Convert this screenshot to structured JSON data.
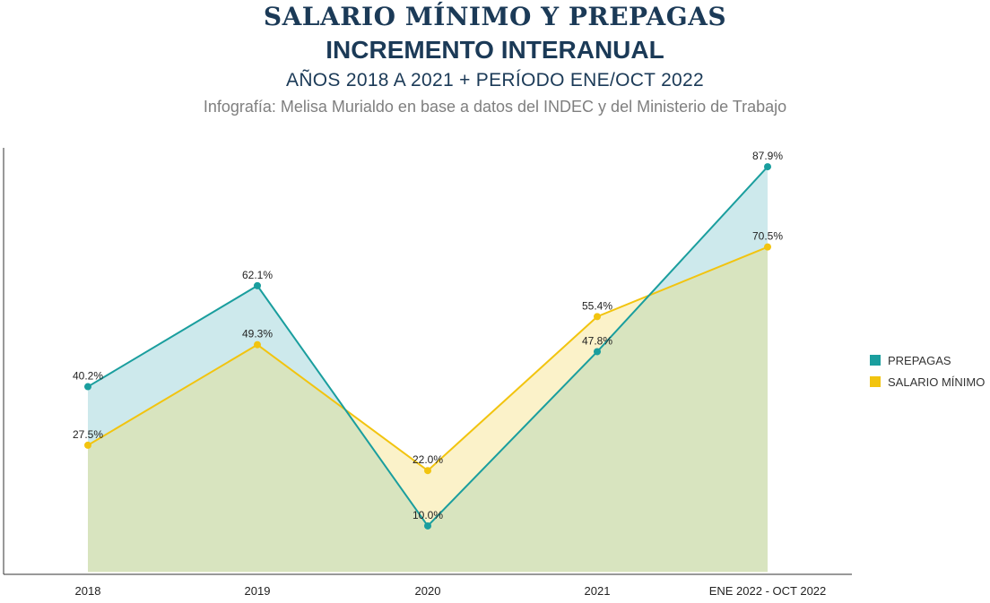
{
  "header": {
    "title": "SALARIO MÍNIMO Y PREPAGAS",
    "subtitle": "INCREMENTO INTERANUAL",
    "period": "AÑOS 2018 A 2021 + PERÍODO ENE/OCT 2022",
    "credit": "Infografía: Melisa Murialdo en base a datos del INDEC y del Ministerio de Trabajo"
  },
  "colors": {
    "title": "#1b3a57",
    "prepagas_line": "#1a9e9e",
    "prepagas_fill": "#cde9ec",
    "salario_line": "#f2c40f",
    "salario_fill": "#fbf2c9",
    "overlap_fill": "#d8e4bf",
    "axis": "#333333"
  },
  "chart_data": {
    "type": "area",
    "categories": [
      "2018",
      "2019",
      "2020",
      "2021",
      "ENE 2022 - OCT 2022"
    ],
    "series": [
      {
        "name": "PREPAGAS",
        "values": [
          40.2,
          62.1,
          10.0,
          47.8,
          87.9
        ],
        "labels": [
          "40.2%",
          "62.1%",
          "10.0%",
          "47.8%",
          "87.9%"
        ],
        "color": "#1a9e9e"
      },
      {
        "name": "SALARIO MÍNIMO",
        "values": [
          27.5,
          49.3,
          22.0,
          55.4,
          70.5
        ],
        "labels": [
          "27.5%",
          "49.3%",
          "22.0%",
          "55.4%",
          "70.5%"
        ],
        "color": "#f2c40f"
      }
    ],
    "ylim": [
      -0.5,
      92
    ],
    "grid": false,
    "legend": "right"
  }
}
